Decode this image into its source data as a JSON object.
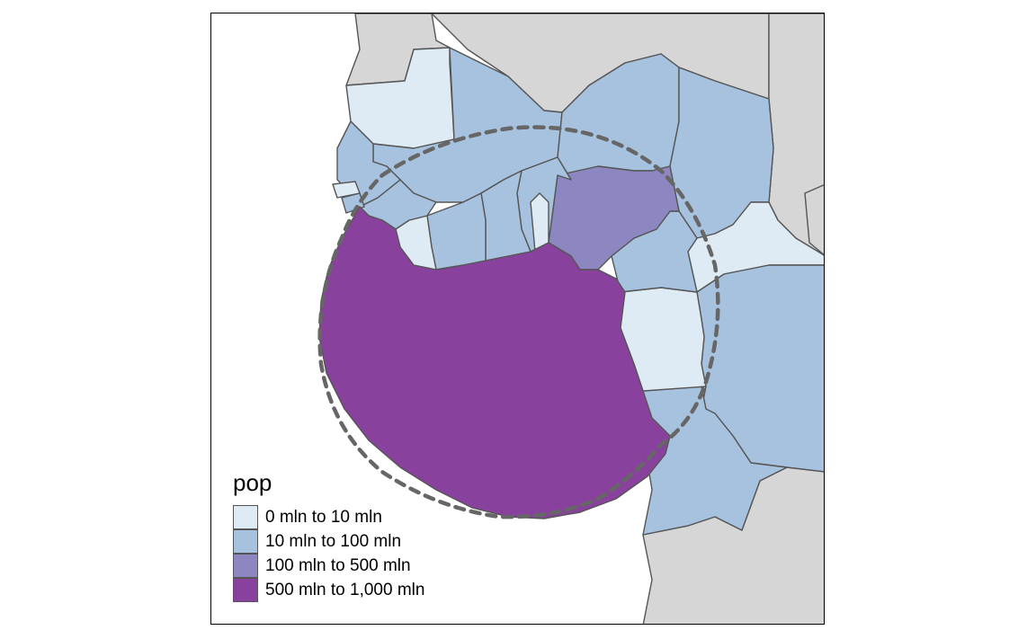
{
  "legend": {
    "title": "pop",
    "items": [
      {
        "label": "0 mln to 10 mln",
        "color": "#deebf4"
      },
      {
        "label": "10 mln to 100 mln",
        "color": "#a7c2de"
      },
      {
        "label": "100 mln to 500 mln",
        "color": "#8c87c0"
      },
      {
        "label": "500 mln to 1,000 mln",
        "color": "#88419d"
      }
    ]
  },
  "colors": {
    "background_country": "#d6d6d6",
    "border": "#555555",
    "buffer_outline": "#666666"
  },
  "map": {
    "fill_variable": "pop",
    "highlighted_region": "circular buffer region (largest population class)",
    "outline_style": "dashed buffer circle"
  }
}
